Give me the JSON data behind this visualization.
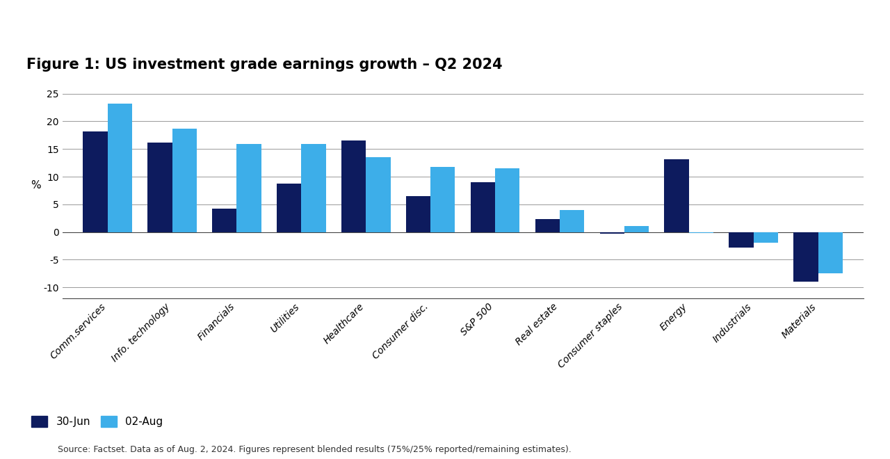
{
  "title": "Figure 1: US investment grade earnings growth – Q2 2024",
  "categories": [
    "Comm.services",
    "Info. technology",
    "Financials",
    "Utilities",
    "Healthcare",
    "Consumer disc.",
    "S&P 500",
    "Real estate",
    "Consumer staples",
    "Energy",
    "Industrials",
    "Materials"
  ],
  "series_30jun": [
    18.2,
    16.2,
    4.2,
    8.7,
    16.5,
    6.5,
    9.0,
    2.3,
    -0.3,
    13.2,
    -2.8,
    -9.0
  ],
  "series_02aug": [
    23.2,
    18.7,
    15.9,
    15.9,
    13.5,
    11.8,
    11.5,
    4.0,
    1.1,
    -0.2,
    -2.0,
    -7.5
  ],
  "color_30jun": "#0d1b5e",
  "color_02aug": "#3daee9",
  "ylabel": "%",
  "ylim": [
    -12,
    27
  ],
  "yticks": [
    -10,
    -5,
    0,
    5,
    10,
    15,
    20,
    25
  ],
  "legend_30jun": "30-Jun",
  "legend_02aug": "02-Aug",
  "source_text": "Source: Factset. Data as of Aug. 2, 2024. Figures represent blended results (75%/25% reported/remaining estimates).",
  "background_color": "#ffffff",
  "grid_color": "#999999",
  "title_fontsize": 15,
  "axis_fontsize": 11,
  "tick_fontsize": 10,
  "legend_fontsize": 11,
  "source_fontsize": 9
}
